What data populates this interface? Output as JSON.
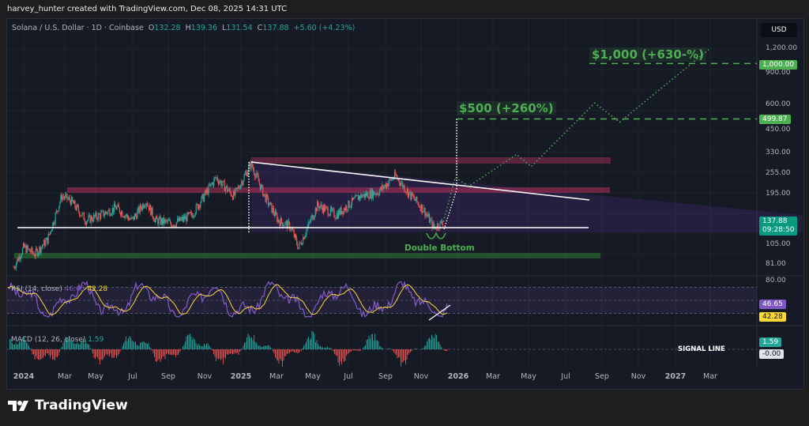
{
  "credit": "harvey_hunter created with TradingView.com, Dec 08, 2025 14:31 UTC",
  "symbol": {
    "title": "Solana / U.S. Dollar · 1D · Coinbase",
    "o_label": "O",
    "open": "132.28",
    "h_label": "H",
    "high": "139.36",
    "l_label": "L",
    "low": "131.54",
    "c_label": "C",
    "close": "137.88",
    "change": "+5.60 (+4.23%)"
  },
  "currency_button": "USD",
  "price_axis": {
    "ticks": [
      "1,200.00",
      "900.00",
      "600.00",
      "450.00",
      "330.00",
      "255.00",
      "195.00",
      "105.00",
      "81.00"
    ],
    "rsi_tick": "80.00",
    "badges": {
      "target_1000": "1,000.00",
      "target_500": "499.87",
      "last_price": "137.88",
      "countdown": "09:28:50",
      "rsi": "46.65",
      "rsi_ma": "42.28",
      "macd": "1.59",
      "signal": "-0.00"
    }
  },
  "time_axis": [
    "2024",
    "Mar",
    "May",
    "Jul",
    "Sep",
    "Nov",
    "2025",
    "Mar",
    "May",
    "Jul",
    "Sep",
    "Nov",
    "2026",
    "Mar",
    "May",
    "Jul",
    "Sep",
    "Nov",
    "2027",
    "Mar"
  ],
  "annotations": {
    "target_1000": "$1,000 (+630-%)",
    "target_500": "$500 (+260%)",
    "pattern": "Double Bottom",
    "signal_line": "SIGNAL LINE"
  },
  "indicators": {
    "rsi": {
      "label": "RSI (14, close)",
      "value": "46.65",
      "ma_value": "42.28"
    },
    "macd": {
      "label": "MACD (12, 26, close)",
      "value": "1.59"
    }
  },
  "colors": {
    "bg": "#161a25",
    "up": "#26a69a",
    "down": "#ef5350",
    "target": "#4caf50",
    "rsi": "#7e57c2",
    "rsi_ma": "#fdd835",
    "resistance": "#b2325a",
    "support": "#2e7d32"
  },
  "brand": "TradingView",
  "chart_data": {
    "type": "candlestick",
    "scale": "log",
    "price_points": [
      [
        "2023-12-15",
        78
      ],
      [
        "2024-01-01",
        100
      ],
      [
        "2024-01-20",
        92
      ],
      [
        "2024-02-10",
        110
      ],
      [
        "2024-03-05",
        190
      ],
      [
        "2024-03-20",
        180
      ],
      [
        "2024-04-15",
        140
      ],
      [
        "2024-05-10",
        150
      ],
      [
        "2024-06-05",
        165
      ],
      [
        "2024-07-01",
        140
      ],
      [
        "2024-07-25",
        180
      ],
      [
        "2024-08-10",
        140
      ],
      [
        "2024-09-10",
        135
      ],
      [
        "2024-10-10",
        150
      ],
      [
        "2024-11-20",
        240
      ],
      [
        "2024-12-20",
        190
      ],
      [
        "2025-01-18",
        285
      ],
      [
        "2025-02-10",
        190
      ],
      [
        "2025-03-05",
        140
      ],
      [
        "2025-03-25",
        130
      ],
      [
        "2025-04-08",
        100
      ],
      [
        "2025-05-10",
        170
      ],
      [
        "2025-06-10",
        150
      ],
      [
        "2025-07-20",
        190
      ],
      [
        "2025-08-20",
        200
      ],
      [
        "2025-09-18",
        245
      ],
      [
        "2025-10-12",
        195
      ],
      [
        "2025-11-05",
        160
      ],
      [
        "2025-11-22",
        128
      ],
      [
        "2025-12-08",
        137.88
      ]
    ],
    "projection": [
      [
        "2025-12-08",
        137.88
      ],
      [
        "2025-12-28",
        240
      ],
      [
        "2026-01-20",
        215
      ],
      [
        "2026-04-10",
        320
      ],
      [
        "2026-05-05",
        275
      ],
      [
        "2026-08-20",
        610
      ],
      [
        "2026-10-01",
        480
      ],
      [
        "2027-03-01",
        1200
      ]
    ],
    "levels": {
      "target_1": 499.87,
      "target_2": 1000,
      "support_line": 128
    },
    "rsi_range": [
      20,
      80
    ]
  }
}
